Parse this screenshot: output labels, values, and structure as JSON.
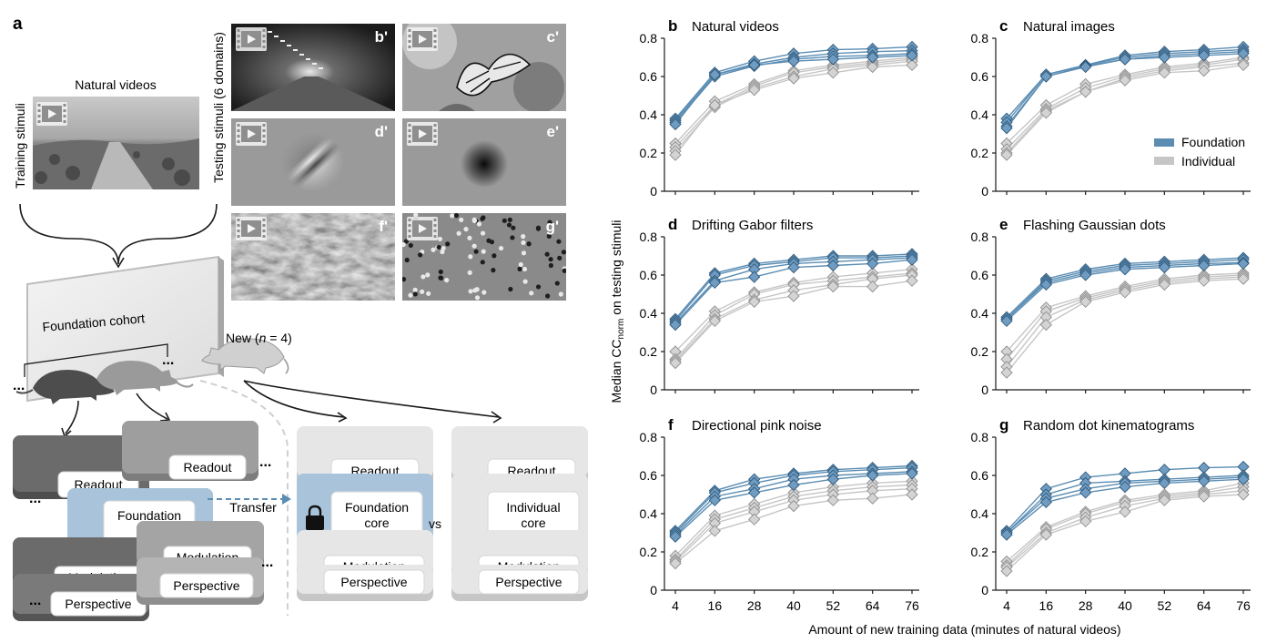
{
  "panel_a": {
    "label": "a",
    "natural_videos": "Natural videos",
    "training_stimuli": "Training stimuli",
    "testing_stimuli": "Testing stimuli (6 domains)",
    "foundation_cohort": "Foundation cohort",
    "new_mouse_prefix": "New (",
    "new_mouse_n": "n",
    "new_mouse_suffix": " = 4)",
    "transfer": "Transfer",
    "vs": "vs",
    "ellipsis": "...",
    "stack_labels": {
      "readout": "Readout",
      "foundation_core_1": "Foundation",
      "foundation_core_2": "core",
      "individual_core_1": "Individual",
      "individual_core_2": "core",
      "modulation": "Modulation",
      "perspective": "Perspective"
    },
    "thumbnails": [
      {
        "label": "b'",
        "kind": "tunnel"
      },
      {
        "label": "c'",
        "kind": "butterfly"
      },
      {
        "label": "d'",
        "kind": "gabor"
      },
      {
        "label": "e'",
        "kind": "gaussian"
      },
      {
        "label": "f'",
        "kind": "pink-noise"
      },
      {
        "label": "g'",
        "kind": "dots"
      }
    ],
    "icon": "film-play-icon"
  },
  "colors": {
    "foundation": "#5b8db3",
    "foundation_fill": "#6f9cc0",
    "individual": "#c6c6c6",
    "individual_fill": "#d4d4d4",
    "core_blue": "#a9c4da"
  },
  "chart_data": {
    "type": "line",
    "x": [
      4,
      16,
      28,
      40,
      52,
      64,
      76
    ],
    "xlabel": "Amount of new training data (minutes of natural videos)",
    "ylabel_prefix": "Median CC",
    "ylabel_sub": "norm",
    "ylabel_suffix": " on testing stimuli",
    "ylim": [
      0,
      0.8
    ],
    "yticks": [
      0,
      0.2,
      0.4,
      0.6,
      0.8
    ],
    "yticklabels": [
      "0",
      "0.2",
      "0.4",
      "0.6",
      "0.8"
    ],
    "legend": {
      "position": "right",
      "entries": [
        "Foundation",
        "Individual"
      ]
    },
    "panels": [
      {
        "label": "b",
        "title": "Natural videos",
        "foundation": [
          [
            0.38,
            0.62,
            0.68,
            0.72,
            0.74,
            0.745,
            0.755
          ],
          [
            0.37,
            0.61,
            0.665,
            0.7,
            0.72,
            0.73,
            0.735
          ],
          [
            0.36,
            0.6,
            0.655,
            0.69,
            0.705,
            0.71,
            0.72
          ],
          [
            0.35,
            0.61,
            0.66,
            0.68,
            0.69,
            0.7,
            0.71
          ]
        ],
        "individual": [
          [
            0.25,
            0.47,
            0.56,
            0.63,
            0.66,
            0.68,
            0.7
          ],
          [
            0.23,
            0.45,
            0.55,
            0.62,
            0.65,
            0.67,
            0.69
          ],
          [
            0.21,
            0.44,
            0.54,
            0.6,
            0.64,
            0.66,
            0.68
          ],
          [
            0.19,
            0.45,
            0.53,
            0.59,
            0.62,
            0.65,
            0.66
          ]
        ]
      },
      {
        "label": "c",
        "title": "Natural images",
        "foundation": [
          [
            0.38,
            0.61,
            0.66,
            0.71,
            0.73,
            0.74,
            0.755
          ],
          [
            0.36,
            0.61,
            0.66,
            0.7,
            0.72,
            0.73,
            0.74
          ],
          [
            0.34,
            0.6,
            0.655,
            0.69,
            0.71,
            0.72,
            0.73
          ],
          [
            0.33,
            0.6,
            0.65,
            0.69,
            0.7,
            0.71,
            0.72
          ]
        ],
        "individual": [
          [
            0.25,
            0.45,
            0.56,
            0.61,
            0.65,
            0.67,
            0.7
          ],
          [
            0.22,
            0.43,
            0.54,
            0.6,
            0.64,
            0.66,
            0.69
          ],
          [
            0.2,
            0.42,
            0.52,
            0.59,
            0.63,
            0.65,
            0.67
          ],
          [
            0.19,
            0.41,
            0.52,
            0.58,
            0.62,
            0.63,
            0.66
          ]
        ]
      },
      {
        "label": "d",
        "title": "Drifting Gabor filters",
        "foundation": [
          [
            0.37,
            0.61,
            0.66,
            0.68,
            0.7,
            0.7,
            0.71
          ],
          [
            0.36,
            0.6,
            0.65,
            0.67,
            0.69,
            0.69,
            0.7
          ],
          [
            0.35,
            0.57,
            0.63,
            0.66,
            0.67,
            0.68,
            0.69
          ],
          [
            0.34,
            0.56,
            0.59,
            0.64,
            0.65,
            0.66,
            0.68
          ]
        ],
        "individual": [
          [
            0.2,
            0.41,
            0.51,
            0.56,
            0.59,
            0.61,
            0.63
          ],
          [
            0.16,
            0.39,
            0.5,
            0.55,
            0.57,
            0.59,
            0.61
          ],
          [
            0.15,
            0.37,
            0.47,
            0.52,
            0.55,
            0.58,
            0.6
          ],
          [
            0.14,
            0.36,
            0.46,
            0.49,
            0.54,
            0.54,
            0.57
          ]
        ]
      },
      {
        "label": "e",
        "title": "Flashing Gaussian dots",
        "foundation": [
          [
            0.38,
            0.58,
            0.63,
            0.66,
            0.67,
            0.68,
            0.69
          ],
          [
            0.37,
            0.57,
            0.62,
            0.65,
            0.66,
            0.67,
            0.68
          ],
          [
            0.37,
            0.56,
            0.61,
            0.64,
            0.65,
            0.66,
            0.665
          ],
          [
            0.36,
            0.55,
            0.6,
            0.63,
            0.64,
            0.65,
            0.66
          ]
        ],
        "individual": [
          [
            0.2,
            0.43,
            0.49,
            0.54,
            0.58,
            0.6,
            0.61
          ],
          [
            0.16,
            0.41,
            0.48,
            0.53,
            0.57,
            0.59,
            0.6
          ],
          [
            0.12,
            0.38,
            0.47,
            0.52,
            0.56,
            0.58,
            0.59
          ],
          [
            0.09,
            0.34,
            0.46,
            0.51,
            0.55,
            0.57,
            0.58
          ]
        ]
      },
      {
        "label": "f",
        "title": "Directional pink noise",
        "foundation": [
          [
            0.31,
            0.52,
            0.58,
            0.61,
            0.63,
            0.64,
            0.65
          ],
          [
            0.3,
            0.51,
            0.56,
            0.6,
            0.62,
            0.63,
            0.64
          ],
          [
            0.29,
            0.49,
            0.53,
            0.58,
            0.6,
            0.61,
            0.62
          ],
          [
            0.28,
            0.47,
            0.51,
            0.55,
            0.58,
            0.6,
            0.61
          ]
        ],
        "individual": [
          [
            0.18,
            0.39,
            0.45,
            0.51,
            0.54,
            0.56,
            0.57
          ],
          [
            0.16,
            0.37,
            0.43,
            0.49,
            0.52,
            0.54,
            0.55
          ],
          [
            0.15,
            0.35,
            0.41,
            0.47,
            0.5,
            0.52,
            0.53
          ],
          [
            0.14,
            0.31,
            0.37,
            0.44,
            0.47,
            0.48,
            0.5
          ]
        ]
      },
      {
        "label": "g",
        "title": "Random dot kinematograms",
        "foundation": [
          [
            0.31,
            0.53,
            0.59,
            0.61,
            0.63,
            0.64,
            0.645
          ],
          [
            0.3,
            0.5,
            0.56,
            0.57,
            0.58,
            0.59,
            0.6
          ],
          [
            0.3,
            0.48,
            0.53,
            0.56,
            0.57,
            0.58,
            0.59
          ],
          [
            0.29,
            0.46,
            0.51,
            0.54,
            0.56,
            0.57,
            0.58
          ]
        ],
        "individual": [
          [
            0.15,
            0.33,
            0.41,
            0.47,
            0.5,
            0.52,
            0.56
          ],
          [
            0.13,
            0.32,
            0.4,
            0.46,
            0.49,
            0.51,
            0.54
          ],
          [
            0.12,
            0.3,
            0.38,
            0.44,
            0.48,
            0.5,
            0.52
          ],
          [
            0.1,
            0.29,
            0.36,
            0.41,
            0.47,
            0.49,
            0.5
          ]
        ]
      }
    ]
  }
}
